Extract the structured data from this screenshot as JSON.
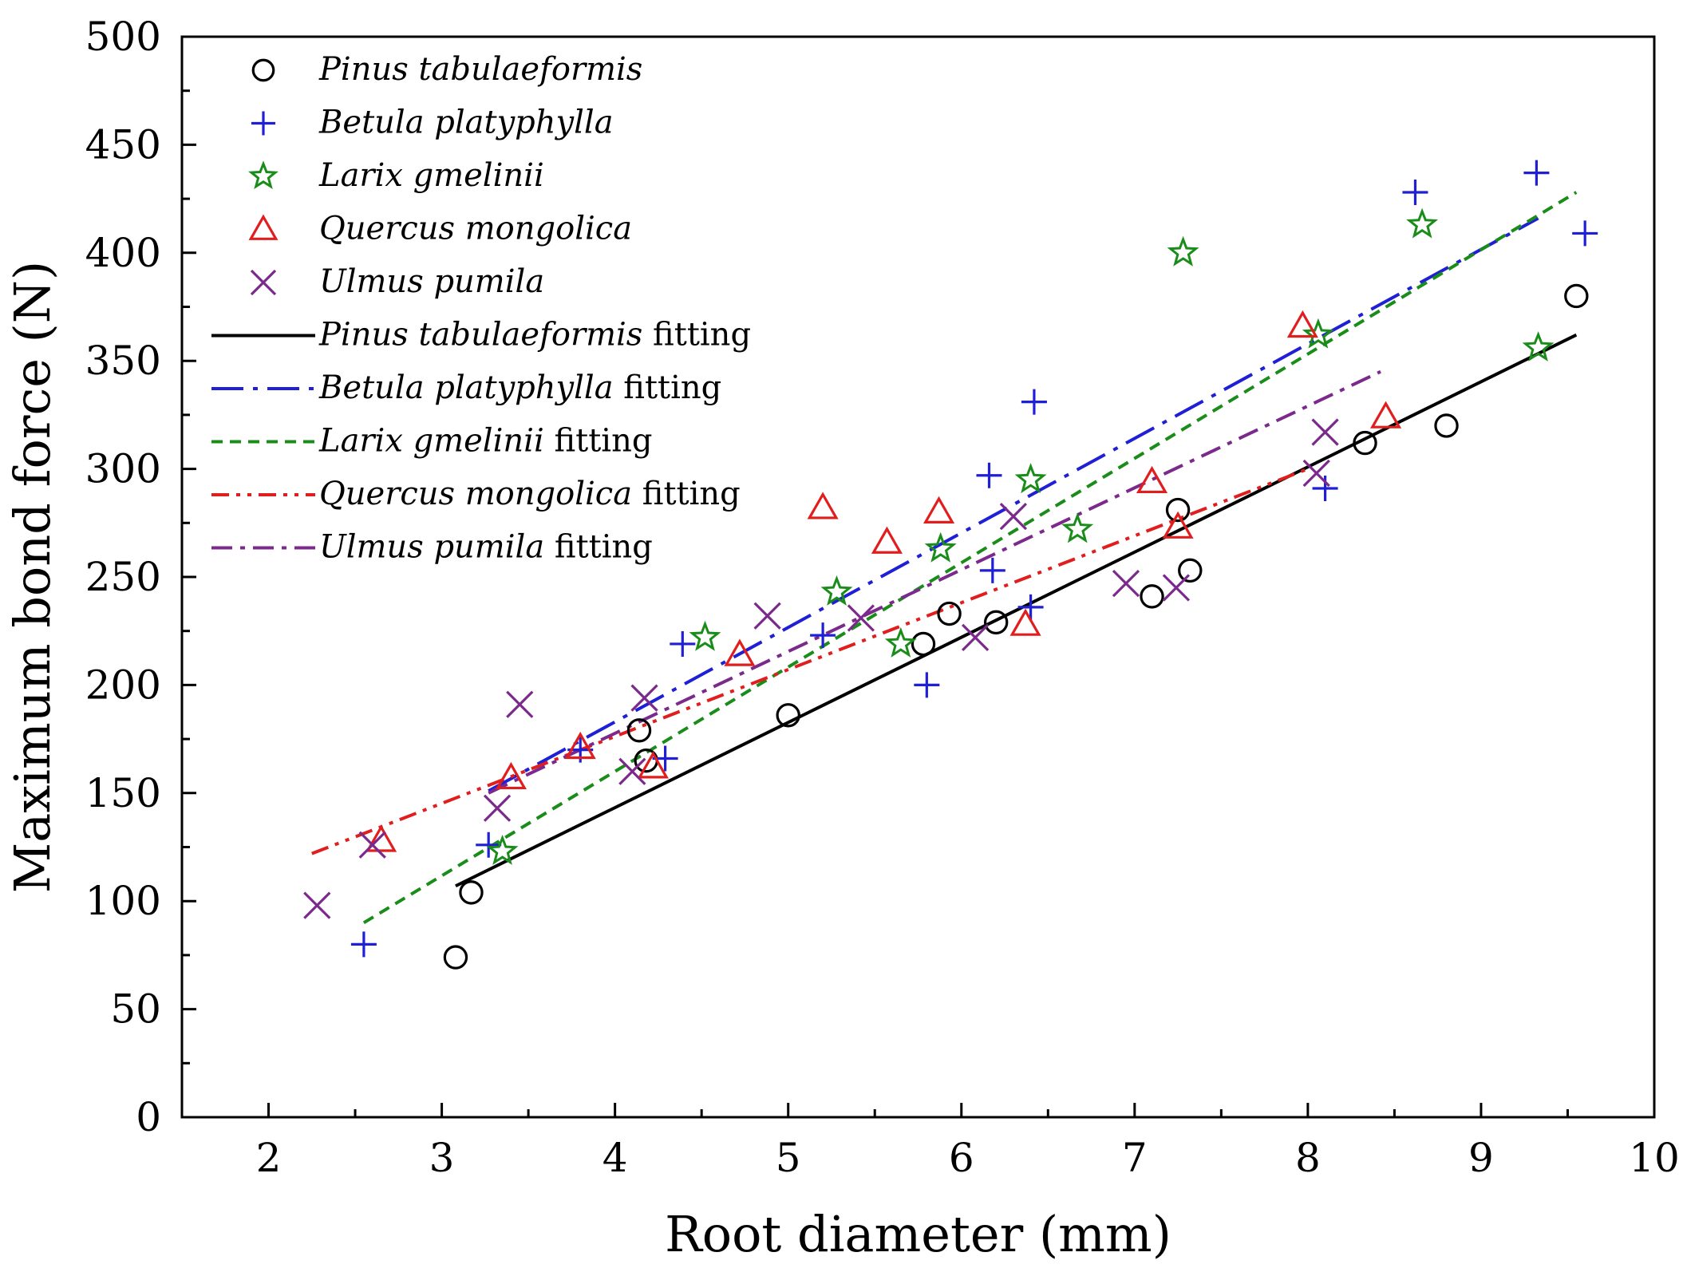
{
  "chart_data": {
    "type": "scatter",
    "title": "",
    "xlabel": "Root diameter (mm)",
    "ylabel": "Maximum bond force (N)",
    "xlim": [
      1.5,
      10
    ],
    "ylim": [
      0,
      500
    ],
    "x_ticks": [
      "2",
      "3",
      "4",
      "5",
      "6",
      "7",
      "8",
      "9",
      "10"
    ],
    "y_ticks": [
      "0",
      "50",
      "100",
      "150",
      "200",
      "250",
      "300",
      "350",
      "400",
      "450",
      "500"
    ],
    "legend_position": "top-left",
    "series": [
      {
        "name": "Pinus tabulaeformis",
        "marker": "circle",
        "color": "#000000",
        "points": [
          [
            3.08,
            74
          ],
          [
            3.17,
            104
          ],
          [
            4.14,
            179
          ],
          [
            4.18,
            165
          ],
          [
            5.0,
            186
          ],
          [
            5.78,
            219
          ],
          [
            5.93,
            233
          ],
          [
            6.2,
            229
          ],
          [
            7.1,
            241
          ],
          [
            7.25,
            281
          ],
          [
            7.32,
            253
          ],
          [
            8.33,
            312
          ],
          [
            8.8,
            320
          ],
          [
            9.55,
            380
          ]
        ]
      },
      {
        "name": "Betula platyphylla",
        "marker": "plus",
        "color": "#1f1fd6",
        "points": [
          [
            2.55,
            80
          ],
          [
            3.27,
            126
          ],
          [
            3.8,
            170
          ],
          [
            4.29,
            166
          ],
          [
            4.39,
            219
          ],
          [
            5.2,
            223
          ],
          [
            5.8,
            200
          ],
          [
            6.16,
            297
          ],
          [
            6.18,
            253
          ],
          [
            6.4,
            236
          ],
          [
            6.42,
            331
          ],
          [
            8.1,
            291
          ],
          [
            8.62,
            428
          ],
          [
            9.32,
            437
          ],
          [
            9.6,
            409
          ]
        ]
      },
      {
        "name": "Larix gmelinii",
        "marker": "star",
        "color": "#1a8c1a",
        "points": [
          [
            3.35,
            123
          ],
          [
            4.52,
            222
          ],
          [
            5.28,
            243
          ],
          [
            5.65,
            219
          ],
          [
            5.88,
            263
          ],
          [
            6.4,
            295
          ],
          [
            6.67,
            272
          ],
          [
            7.28,
            400
          ],
          [
            8.06,
            362
          ],
          [
            8.66,
            413
          ],
          [
            9.33,
            356
          ]
        ]
      },
      {
        "name": "Quercus mongolica",
        "marker": "triangle",
        "color": "#e01e1e",
        "points": [
          [
            2.65,
            128
          ],
          [
            3.4,
            157
          ],
          [
            3.8,
            171
          ],
          [
            4.22,
            162
          ],
          [
            4.72,
            214
          ],
          [
            5.2,
            282
          ],
          [
            5.57,
            266
          ],
          [
            5.87,
            280
          ],
          [
            6.37,
            228
          ],
          [
            7.1,
            294
          ],
          [
            7.25,
            273
          ],
          [
            7.97,
            366
          ],
          [
            8.45,
            324
          ]
        ]
      },
      {
        "name": "Ulmus pumila",
        "marker": "x",
        "color": "#7b2a8c",
        "points": [
          [
            2.28,
            98
          ],
          [
            2.6,
            126
          ],
          [
            3.32,
            143
          ],
          [
            3.45,
            191
          ],
          [
            4.1,
            160
          ],
          [
            4.17,
            194
          ],
          [
            4.88,
            232
          ],
          [
            5.42,
            231
          ],
          [
            6.08,
            222
          ],
          [
            6.3,
            278
          ],
          [
            6.95,
            247
          ],
          [
            7.24,
            245
          ],
          [
            8.05,
            298
          ],
          [
            8.1,
            317
          ]
        ]
      }
    ],
    "fits": [
      {
        "name": "Pinus tabulaeformis",
        "label_suffix": "fitting",
        "style": "solid",
        "color": "#000000",
        "x": [
          3.08,
          9.55
        ],
        "y": [
          107,
          362
        ]
      },
      {
        "name": "Betula platyphylla",
        "label_suffix": "fitting",
        "style": "dashdot-long",
        "color": "#1f1fd6",
        "x": [
          3.27,
          9.33
        ],
        "y": [
          151,
          416
        ]
      },
      {
        "name": "Larix gmelinii",
        "label_suffix": "fitting",
        "style": "dashed",
        "color": "#1a8c1a",
        "x": [
          2.55,
          9.55
        ],
        "y": [
          90,
          428
        ]
      },
      {
        "name": "Quercus mongolica",
        "label_suffix": "fitting",
        "style": "dashdotdot",
        "color": "#e01e1e",
        "x": [
          2.25,
          8.0
        ],
        "y": [
          122,
          300
        ]
      },
      {
        "name": "Ulmus pumila",
        "label_suffix": "fitting",
        "style": "dashdot",
        "color": "#7b2a8c",
        "x": [
          3.27,
          8.42
        ],
        "y": [
          150,
          345
        ]
      }
    ]
  }
}
